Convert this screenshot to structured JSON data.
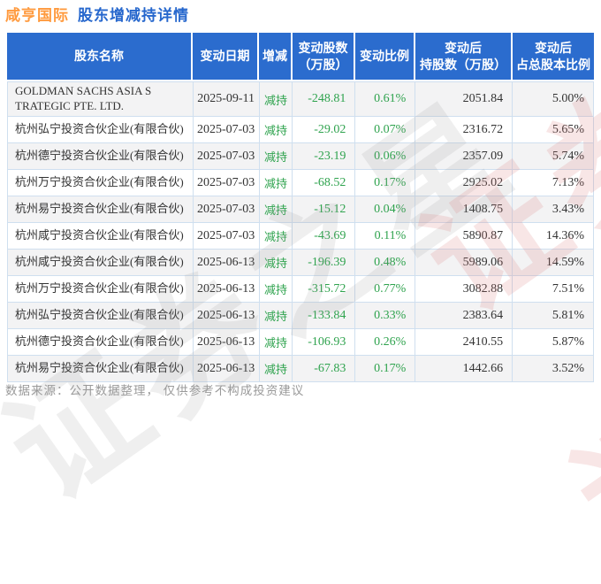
{
  "page": {
    "title_stock": "咸亨国际",
    "title_rest": "股东增减持详情",
    "footer": "数据来源：公开数据整理， 仅供参考不构成投资建议",
    "watermark_text": "证券之星"
  },
  "colors": {
    "header_blue": "#2b6cce",
    "title_orange": "#ff9a3e",
    "title_blue": "#2667cd",
    "decrease_green": "#2fa34e",
    "row_alt_gray": "#f3f3f4",
    "grid_line": "#cfdfef",
    "footer_gray": "#9a9a9a"
  },
  "table": {
    "headers": [
      {
        "line1": "股东名称",
        "line2": ""
      },
      {
        "line1": "变动日期",
        "line2": ""
      },
      {
        "line1": "增减",
        "line2": ""
      },
      {
        "line1": "变动股数",
        "line2": "（万股）"
      },
      {
        "line1": "变动比例",
        "line2": ""
      },
      {
        "line1": "变动后",
        "line2": "持股数（万股）"
      },
      {
        "line1": "变动后",
        "line2": "占总股本比例"
      }
    ],
    "rows": [
      {
        "name": "GOLDMAN SACHS ASIA S TRATEGIC PTE. LTD.",
        "date": "2025-09-11",
        "action": "减持",
        "change_shares": "-248.81",
        "change_ratio": "0.61%",
        "shares_after": "2051.84",
        "pct_after": "5.00%"
      },
      {
        "name": "杭州弘宁投资合伙企业(有限合伙)",
        "date": "2025-07-03",
        "action": "减持",
        "change_shares": "-29.02",
        "change_ratio": "0.07%",
        "shares_after": "2316.72",
        "pct_after": "5.65%"
      },
      {
        "name": "杭州德宁投资合伙企业(有限合伙)",
        "date": "2025-07-03",
        "action": "减持",
        "change_shares": "-23.19",
        "change_ratio": "0.06%",
        "shares_after": "2357.09",
        "pct_after": "5.74%"
      },
      {
        "name": "杭州万宁投资合伙企业(有限合伙)",
        "date": "2025-07-03",
        "action": "减持",
        "change_shares": "-68.52",
        "change_ratio": "0.17%",
        "shares_after": "2925.02",
        "pct_after": "7.13%"
      },
      {
        "name": "杭州易宁投资合伙企业(有限合伙)",
        "date": "2025-07-03",
        "action": "减持",
        "change_shares": "-15.12",
        "change_ratio": "0.04%",
        "shares_after": "1408.75",
        "pct_after": "3.43%"
      },
      {
        "name": "杭州咸宁投资合伙企业(有限合伙)",
        "date": "2025-07-03",
        "action": "减持",
        "change_shares": "-43.69",
        "change_ratio": "0.11%",
        "shares_after": "5890.87",
        "pct_after": "14.36%"
      },
      {
        "name": "杭州咸宁投资合伙企业(有限合伙)",
        "date": "2025-06-13",
        "action": "减持",
        "change_shares": "-196.39",
        "change_ratio": "0.48%",
        "shares_after": "5989.06",
        "pct_after": "14.59%"
      },
      {
        "name": "杭州万宁投资合伙企业(有限合伙)",
        "date": "2025-06-13",
        "action": "减持",
        "change_shares": "-315.72",
        "change_ratio": "0.77%",
        "shares_after": "3082.88",
        "pct_after": "7.51%"
      },
      {
        "name": "杭州弘宁投资合伙企业(有限合伙)",
        "date": "2025-06-13",
        "action": "减持",
        "change_shares": "-133.84",
        "change_ratio": "0.33%",
        "shares_after": "2383.64",
        "pct_after": "5.81%"
      },
      {
        "name": "杭州德宁投资合伙企业(有限合伙)",
        "date": "2025-06-13",
        "action": "减持",
        "change_shares": "-106.93",
        "change_ratio": "0.26%",
        "shares_after": "2410.55",
        "pct_after": "5.87%"
      },
      {
        "name": "杭州易宁投资合伙企业(有限合伙)",
        "date": "2025-06-13",
        "action": "减持",
        "change_shares": "-67.83",
        "change_ratio": "0.17%",
        "shares_after": "1442.66",
        "pct_after": "3.52%"
      }
    ]
  },
  "chart_data": {
    "type": "table",
    "title": "咸亨国际 股东增减持详情",
    "columns": [
      "股东名称",
      "变动日期",
      "增减",
      "变动股数（万股）",
      "变动比例",
      "变动后持股数（万股）",
      "变动后占总股本比例"
    ],
    "rows": [
      [
        "GOLDMAN SACHS ASIA S TRATEGIC PTE. LTD.",
        "2025-09-11",
        "减持",
        -248.81,
        "0.61%",
        2051.84,
        "5.00%"
      ],
      [
        "杭州弘宁投资合伙企业(有限合伙)",
        "2025-07-03",
        "减持",
        -29.02,
        "0.07%",
        2316.72,
        "5.65%"
      ],
      [
        "杭州德宁投资合伙企业(有限合伙)",
        "2025-07-03",
        "减持",
        -23.19,
        "0.06%",
        2357.09,
        "5.74%"
      ],
      [
        "杭州万宁投资合伙企业(有限合伙)",
        "2025-07-03",
        "减持",
        -68.52,
        "0.17%",
        2925.02,
        "7.13%"
      ],
      [
        "杭州易宁投资合伙企业(有限合伙)",
        "2025-07-03",
        "减持",
        -15.12,
        "0.04%",
        1408.75,
        "3.43%"
      ],
      [
        "杭州咸宁投资合伙企业(有限合伙)",
        "2025-07-03",
        "减持",
        -43.69,
        "0.11%",
        5890.87,
        "14.36%"
      ],
      [
        "杭州咸宁投资合伙企业(有限合伙)",
        "2025-06-13",
        "减持",
        -196.39,
        "0.48%",
        5989.06,
        "14.59%"
      ],
      [
        "杭州万宁投资合伙企业(有限合伙)",
        "2025-06-13",
        "减持",
        -315.72,
        "0.77%",
        3082.88,
        "7.51%"
      ],
      [
        "杭州弘宁投资合伙企业(有限合伙)",
        "2025-06-13",
        "减持",
        -133.84,
        "0.33%",
        2383.64,
        "5.81%"
      ],
      [
        "杭州德宁投资合伙企业(有限合伙)",
        "2025-06-13",
        "减持",
        -106.93,
        "0.26%",
        2410.55,
        "5.87%"
      ],
      [
        "杭州易宁投资合伙企业(有限合伙)",
        "2025-06-13",
        "减持",
        -67.83,
        "0.17%",
        1442.66,
        "3.52%"
      ]
    ]
  }
}
